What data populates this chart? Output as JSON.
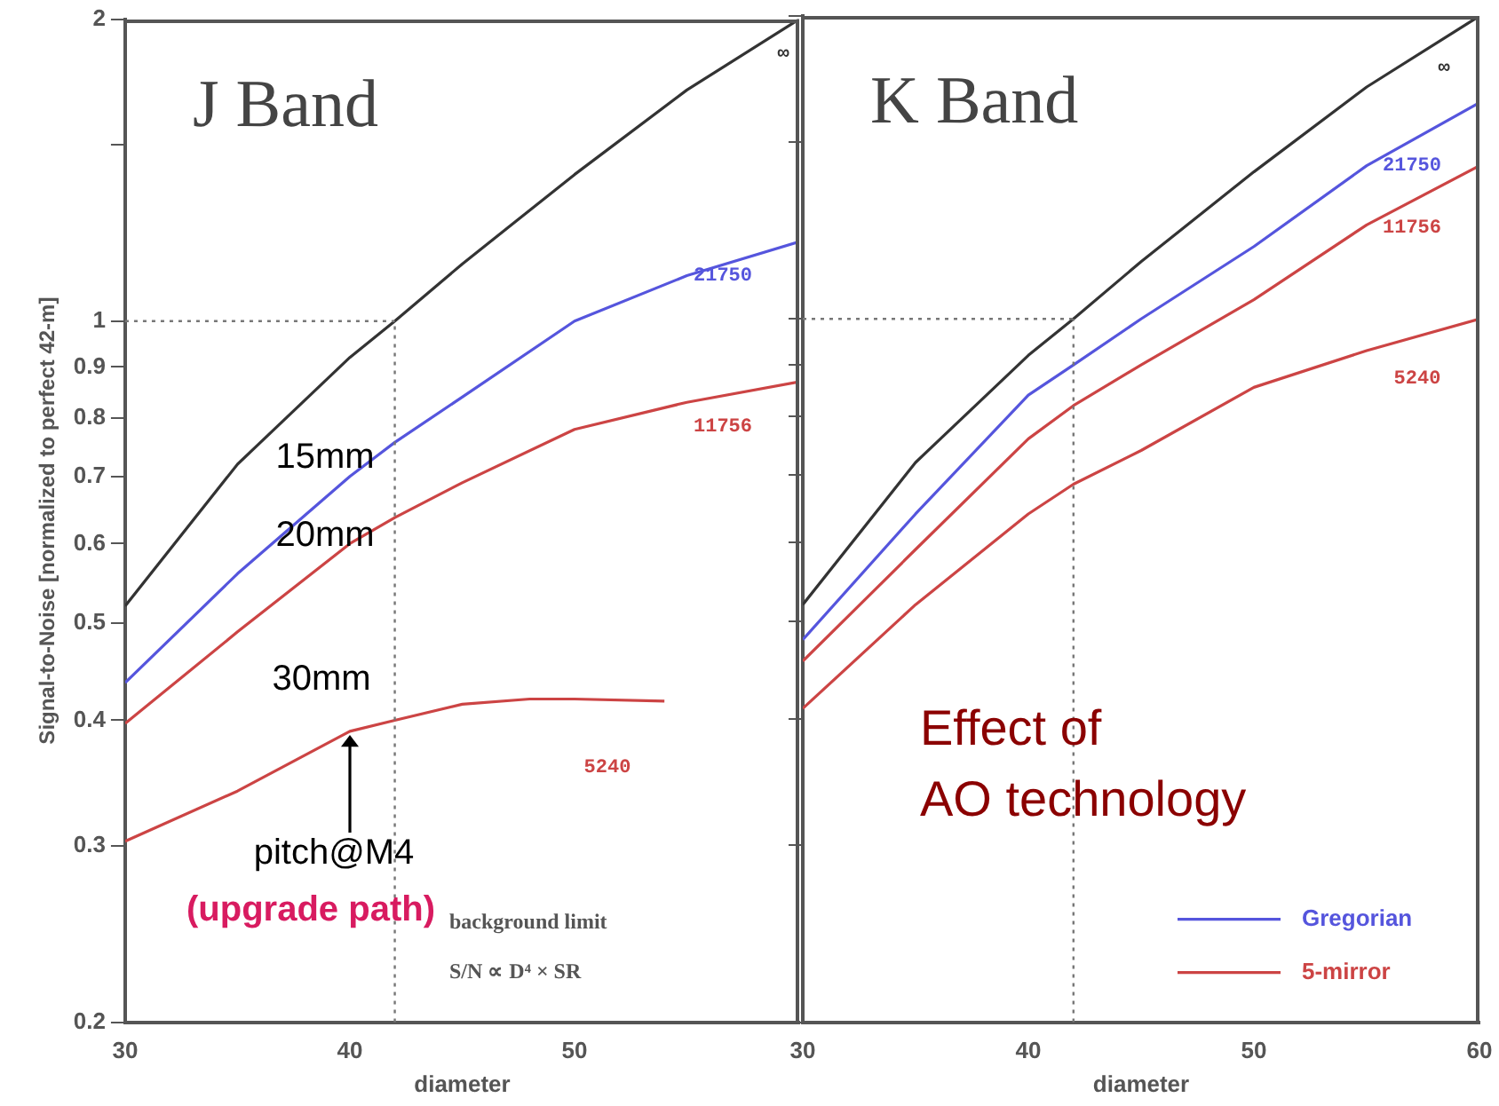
{
  "chart_data": [
    {
      "type": "line",
      "title": "J Band",
      "xlabel": "diameter",
      "ylabel": "Signal-to-Noise [normalized to perfect 42-m]",
      "x": [
        30,
        35,
        40,
        42,
        45,
        50,
        55,
        60
      ],
      "series": [
        {
          "color": "#333333",
          "values": [
            0.52,
            0.72,
            0.92,
            1.0,
            1.14,
            1.4,
            1.7,
            2.0
          ]
        },
        {
          "color": "#5555dd",
          "values": [
            0.436,
            0.56,
            0.7,
            0.757,
            0.84,
            1.0,
            1.11,
            1.2
          ]
        },
        {
          "color": "#cc4444",
          "values": [
            0.397,
            0.49,
            0.6,
            0.637,
            0.69,
            0.78,
            0.83,
            0.87
          ]
        },
        {
          "color": "#cc4444",
          "x": [
            30,
            35,
            40,
            42,
            45,
            48,
            50,
            54
          ],
          "values": [
            0.303,
            0.34,
            0.39,
            0.4,
            0.415,
            0.42,
            0.42,
            0.418
          ]
        }
      ],
      "log": "y",
      "xlim": [
        30,
        60
      ],
      "ylim": [
        0.2,
        2
      ],
      "xticks": [
        30,
        40,
        50
      ],
      "yticks": [
        0.2,
        0.3,
        0.4,
        0.5,
        0.6,
        0.7,
        0.8,
        0.9,
        1,
        {
          "value": 1.5,
          "label": null
        },
        2
      ],
      "marker": "none",
      "line_style": "solid",
      "legend": false,
      "ref_lines": [
        {
          "axis": "x",
          "value": 42,
          "line_style": "dotted"
        },
        {
          "axis": "y",
          "value": 1,
          "line_style": "dotted"
        }
      ],
      "annotations": [
        "∞",
        "21750",
        "11756",
        "5240",
        "15mm",
        "20mm",
        "30mm",
        {
          "text": "pitch@M4",
          "x": 40,
          "y": 0.39
        },
        "(upgrade path)",
        "background limit",
        "S/N ∝ D⁴ × SR"
      ]
    },
    {
      "type": "line",
      "title": "K Band",
      "xlabel": "diameter",
      "x": [
        30,
        35,
        40,
        42,
        45,
        50,
        55,
        60
      ],
      "series": [
        {
          "color": "#333333",
          "values": [
            0.52,
            0.72,
            0.92,
            1.0,
            1.14,
            1.4,
            1.7,
            2.0
          ]
        },
        {
          "name": "Gregorian",
          "color": "#5555dd",
          "values": [
            0.48,
            0.64,
            0.84,
            0.9,
            1.0,
            1.18,
            1.42,
            1.64
          ]
        },
        {
          "name": "5-mirror",
          "color": "#cc4444",
          "values": [
            0.457,
            0.59,
            0.76,
            0.82,
            0.9,
            1.045,
            1.24,
            1.42
          ]
        },
        {
          "color": "#cc4444",
          "values": [
            0.41,
            0.52,
            0.64,
            0.685,
            0.74,
            0.855,
            0.93,
            1.0
          ]
        }
      ],
      "log": "y",
      "xlim": [
        30,
        60
      ],
      "ylim": [
        0.2,
        2
      ],
      "xticks": [
        30,
        40,
        50,
        60
      ],
      "yticks": [
        0.2,
        0.3,
        0.4,
        0.5,
        0.6,
        0.7,
        0.8,
        0.9,
        1,
        {
          "value": 1.5,
          "label": null
        },
        2
      ],
      "tick_labels": "x",
      "marker": "none",
      "line_style": "solid",
      "legend": "bottom right",
      "ref_lines": [
        {
          "axis": "x",
          "value": 42,
          "line_style": "dotted"
        },
        {
          "axis": "y",
          "value": 1,
          "line_style": "dotted"
        }
      ],
      "annotations": [
        "∞",
        "21750",
        "11756",
        "5240",
        "Effect of\nAO technology"
      ]
    }
  ]
}
